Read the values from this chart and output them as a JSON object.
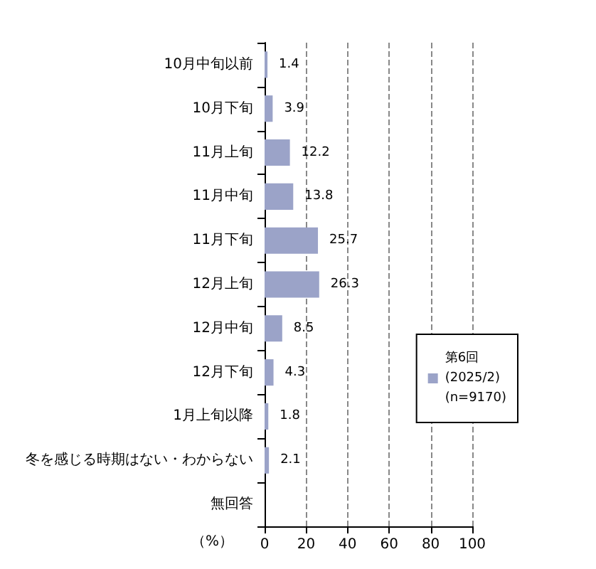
{
  "chart_data": {
    "type": "bar",
    "orientation": "horizontal",
    "xlabel": "（%）",
    "categories": [
      "10月中旬以前",
      "10月下旬",
      "11月上旬",
      "11月中旬",
      "11月下旬",
      "12月上旬",
      "12月中旬",
      "12月下旬",
      "1月上旬以降",
      "冬を感じる時期はない・わからない",
      "無回答"
    ],
    "series": [
      {
        "name": "第6回\n(2025/2)\n(n=9170)",
        "color": "#9ba3c8",
        "values": [
          1.4,
          3.9,
          12.2,
          13.8,
          25.7,
          26.3,
          8.5,
          4.3,
          1.8,
          2.1,
          null
        ]
      }
    ],
    "xlim": [
      0,
      100
    ],
    "xticks": [
      0,
      20,
      40,
      60,
      80,
      100
    ],
    "grid": "x",
    "legend": "right",
    "data_labels": true
  }
}
